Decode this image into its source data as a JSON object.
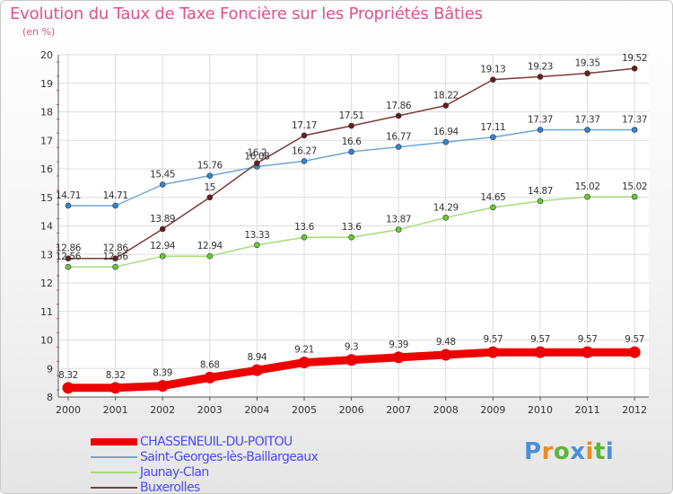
{
  "header": {
    "title": "Evolution du Taux de Taxe Foncière sur les Propriétés Bâties",
    "unit": "(en %)"
  },
  "logo": {
    "text": "Proxiti",
    "letter_colors": [
      "#4a90d9",
      "#f08a24",
      "#5bb53a",
      "#4a90d9",
      "#f08a24",
      "#5bb53a",
      "#4a90d9"
    ]
  },
  "chart_data": {
    "type": "line",
    "title": "Evolution du Taux de Taxe Foncière sur les Propriétés Bâties",
    "ylabel": "(en %)",
    "xlabel": "",
    "x": [
      "2000",
      "2001",
      "2002",
      "2003",
      "2004",
      "2005",
      "2006",
      "2007",
      "2008",
      "2009",
      "2010",
      "2011",
      "2012"
    ],
    "ylim": [
      8,
      20
    ],
    "yticks": [
      "8",
      "9",
      "10",
      "11",
      "12",
      "13",
      "14",
      "15",
      "16",
      "17",
      "18",
      "19",
      "20"
    ],
    "grid": true,
    "legend_position": "bottom-left",
    "series": [
      {
        "name": "CHASSENEUIL-DU-POITOU",
        "color": "#ee0000",
        "marker_color": "#ee0000",
        "width": 9,
        "values": [
          8.32,
          8.32,
          8.39,
          8.68,
          8.94,
          9.21,
          9.3,
          9.39,
          9.48,
          9.57,
          9.57,
          9.57,
          9.57
        ],
        "labels": [
          "8.32",
          "8.32",
          "8.39",
          "8.68",
          "8.94",
          "9.21",
          "9.3",
          "9.39",
          "9.48",
          "9.57",
          "9.57",
          "9.57",
          "9.57"
        ]
      },
      {
        "name": "Saint-Georges-lès-Baillargeaux",
        "color": "#6fa6d6",
        "marker_color": "#2f86d8",
        "width": 1.5,
        "values": [
          14.71,
          14.71,
          15.45,
          15.76,
          16.08,
          16.27,
          16.6,
          16.77,
          16.94,
          17.11,
          17.37,
          17.37,
          17.37
        ],
        "labels": [
          "14.71",
          "14.71",
          "15.45",
          "15.76",
          "16.08",
          "16.27",
          "16.6",
          "16.77",
          "16.94",
          "17.11",
          "17.37",
          "17.37",
          "17.37"
        ]
      },
      {
        "name": "Jaunay-Clan",
        "color": "#a7db7b",
        "marker_color": "#66cc33",
        "width": 1.5,
        "values": [
          12.56,
          12.56,
          12.94,
          12.94,
          13.33,
          13.6,
          13.6,
          13.87,
          14.29,
          14.65,
          14.87,
          15.02,
          15.02
        ],
        "labels": [
          "12.56",
          "12.56",
          "12.94",
          "12.94",
          "13.33",
          "13.6",
          "13.6",
          "13.87",
          "14.29",
          "14.65",
          "14.87",
          "15.02",
          "15.02"
        ]
      },
      {
        "name": "Buxerolles",
        "color": "#7a3a3a",
        "marker_color": "#6b1c1c",
        "width": 1.5,
        "values": [
          12.86,
          12.86,
          13.89,
          15,
          16.2,
          17.17,
          17.51,
          17.86,
          18.22,
          19.13,
          19.23,
          19.35,
          19.52
        ],
        "labels": [
          "12.86",
          "12.86",
          "13.89",
          "15",
          "16.2",
          "17.17",
          "17.51",
          "17.86",
          "18.22",
          "19.13",
          "19.23",
          "19.35",
          "19.52"
        ]
      }
    ]
  }
}
